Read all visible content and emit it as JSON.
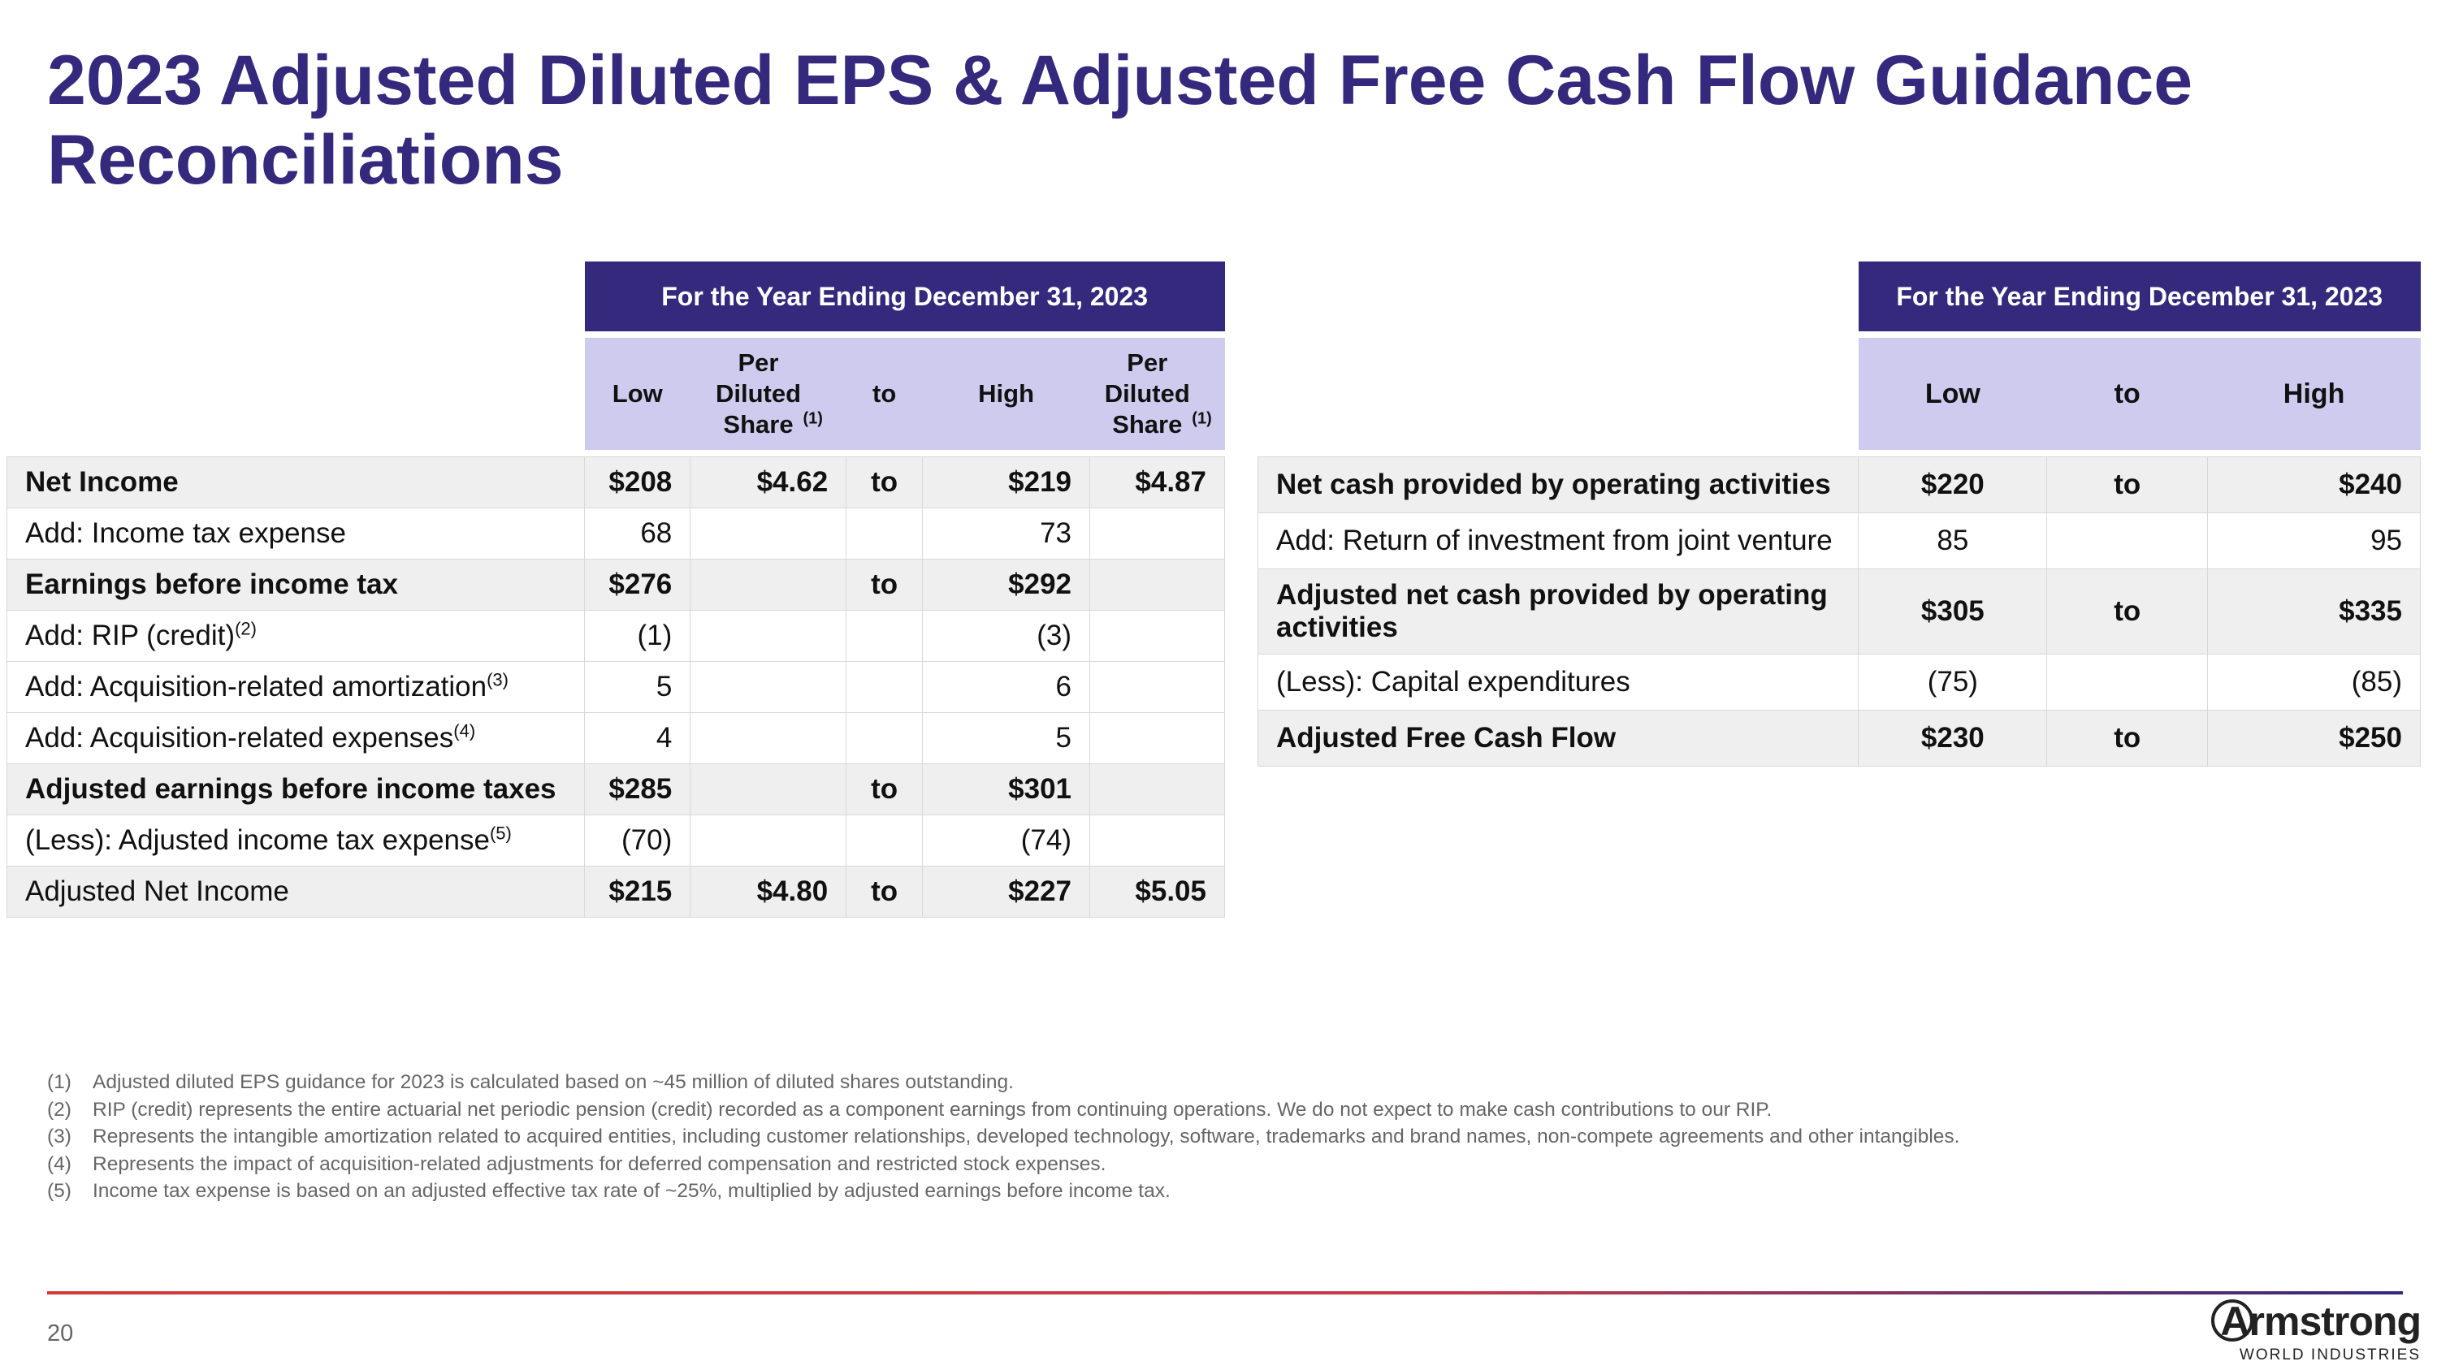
{
  "title": "2023 Adjusted Diluted EPS & Adjusted Free Cash Flow Guidance Reconciliations",
  "eps_table": {
    "period_header": "For the Year Ending December 31, 2023",
    "col_low": "Low",
    "col_per_share": "Per Diluted Share",
    "col_per_share_note": "(1)",
    "col_to": "to",
    "col_high": "High",
    "rows": [
      {
        "label": "Net Income",
        "note": "",
        "low": "$208",
        "low_ps": "$4.62",
        "to": "to",
        "high": "$219",
        "high_ps": "$4.87"
      },
      {
        "label": "Add: Income tax expense",
        "note": "",
        "low": "68",
        "low_ps": "",
        "to": "",
        "high": "73",
        "high_ps": ""
      },
      {
        "label": "Earnings before income tax",
        "note": "",
        "low": "$276",
        "low_ps": "",
        "to": "to",
        "high": "$292",
        "high_ps": ""
      },
      {
        "label": "Add: RIP (credit)",
        "note": "(2)",
        "low": "(1)",
        "low_ps": "",
        "to": "",
        "high": "(3)",
        "high_ps": ""
      },
      {
        "label": "Add: Acquisition-related amortization",
        "note": "(3)",
        "low": "5",
        "low_ps": "",
        "to": "",
        "high": "6",
        "high_ps": ""
      },
      {
        "label": "Add: Acquisition-related expenses",
        "note": "(4)",
        "low": "4",
        "low_ps": "",
        "to": "",
        "high": "5",
        "high_ps": ""
      },
      {
        "label": "Adjusted earnings before income taxes",
        "note": "",
        "low": "$285",
        "low_ps": "",
        "to": "to",
        "high": "$301",
        "high_ps": ""
      },
      {
        "label": "(Less): Adjusted income tax expense",
        "note": "(5)",
        "low": "(70)",
        "low_ps": "",
        "to": "",
        "high": "(74)",
        "high_ps": ""
      },
      {
        "label": "Adjusted Net Income",
        "note": "",
        "low": "$215",
        "low_ps": "$4.80",
        "to": "to",
        "high": "$227",
        "high_ps": "$5.05"
      }
    ]
  },
  "fcf_table": {
    "period_header": "For the Year Ending December 31, 2023",
    "col_low": "Low",
    "col_to": "to",
    "col_high": "High",
    "rows": [
      {
        "label": "Net cash provided by operating activities",
        "low": "$220",
        "to": "to",
        "high": "$240"
      },
      {
        "label": "Add: Return of investment from joint venture",
        "low": "85",
        "to": "",
        "high": "95"
      },
      {
        "label": "Adjusted net cash provided by operating activities",
        "low": "$305",
        "to": "to",
        "high": "$335"
      },
      {
        "label": "(Less): Capital expenditures",
        "low": "(75)",
        "to": "",
        "high": "(85)"
      },
      {
        "label": "Adjusted Free Cash Flow",
        "low": "$230",
        "to": "to",
        "high": "$250"
      }
    ]
  },
  "footnotes": [
    {
      "num": "(1)",
      "text": "Adjusted diluted EPS guidance for 2023 is calculated based on ~45 million of diluted shares outstanding."
    },
    {
      "num": "(2)",
      "text": "RIP (credit) represents the entire actuarial net periodic pension (credit) recorded as a component earnings from continuing operations. We do not expect to make cash contributions to our RIP."
    },
    {
      "num": "(3)",
      "text": "Represents the intangible amortization related to acquired entities, including customer relationships, developed technology, software, trademarks and brand names, non-compete agreements and other intangibles."
    },
    {
      "num": "(4)",
      "text": "Represents the impact of acquisition-related adjustments for deferred compensation and restricted stock expenses."
    },
    {
      "num": "(5)",
      "text": "Income tax expense is based on an adjusted effective tax rate of ~25%, multiplied by adjusted earnings before income tax."
    }
  ],
  "page_number": "20",
  "logo": {
    "word": "Armstrong",
    "sub": "WORLD INDUSTRIES"
  }
}
